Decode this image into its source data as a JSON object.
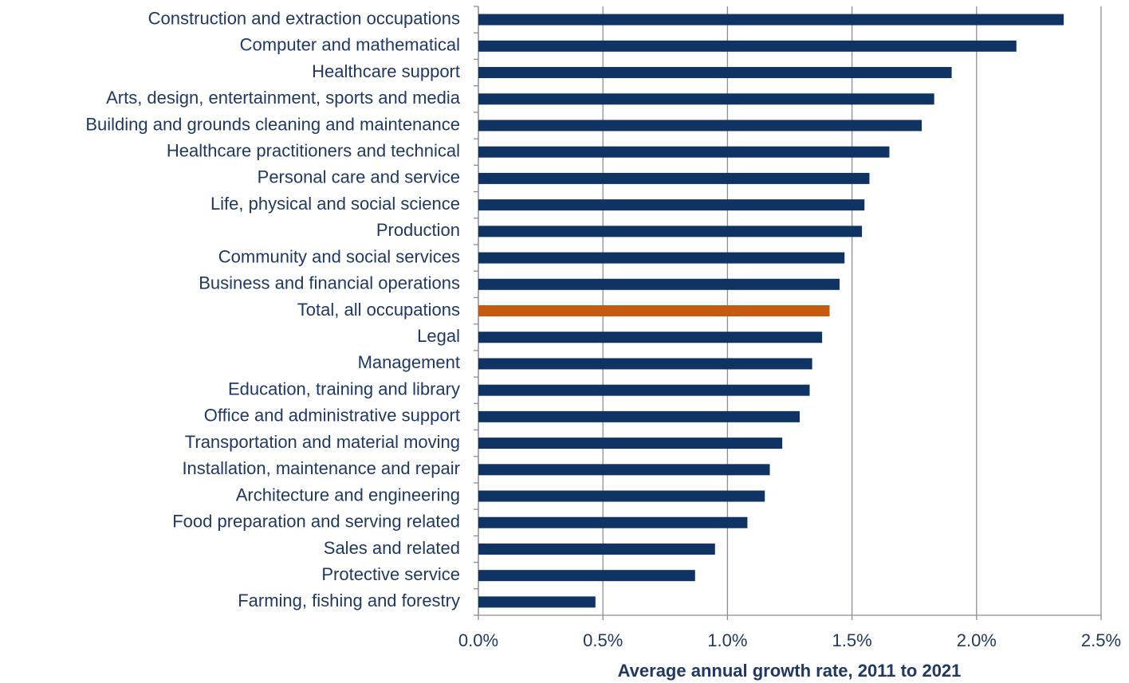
{
  "chart_data": {
    "type": "bar",
    "orientation": "horizontal",
    "x_label": "Average annual growth rate, 2011 to 2021",
    "categories": [
      "Construction and extraction occupations",
      "Computer and mathematical",
      "Healthcare support",
      "Arts, design, entertainment, sports and media",
      "Building and grounds cleaning and maintenance",
      "Healthcare practitioners and technical",
      "Personal care and service",
      "Life, physical and social science",
      "Production",
      "Community and social services",
      "Business and financial operations",
      "Total, all occupations",
      "Legal",
      "Management",
      "Education, training and library",
      "Office and administrative support",
      "Transportation and material moving",
      "Installation, maintenance and repair",
      "Architecture and engineering",
      "Food preparation and serving related",
      "Sales and related",
      "Protective service",
      "Farming, fishing and forestry"
    ],
    "values": [
      2.35,
      2.16,
      1.9,
      1.83,
      1.78,
      1.65,
      1.57,
      1.55,
      1.54,
      1.47,
      1.45,
      1.41,
      1.38,
      1.34,
      1.33,
      1.29,
      1.22,
      1.17,
      1.15,
      1.08,
      0.95,
      0.87,
      0.47
    ],
    "colors": [
      "#0f3463",
      "#0f3463",
      "#0f3463",
      "#0f3463",
      "#0f3463",
      "#0f3463",
      "#0f3463",
      "#0f3463",
      "#0f3463",
      "#0f3463",
      "#0f3463",
      "#c55a11",
      "#0f3463",
      "#0f3463",
      "#0f3463",
      "#0f3463",
      "#0f3463",
      "#0f3463",
      "#0f3463",
      "#0f3463",
      "#0f3463",
      "#0f3463",
      "#0f3463"
    ],
    "xlim": [
      0,
      2.5
    ],
    "xticks": [
      {
        "value": 0,
        "label": "0.0%"
      },
      {
        "value": 0.5,
        "label": "0.5%"
      },
      {
        "value": 1,
        "label": "1.0%"
      },
      {
        "value": 1.5,
        "label": "1.5%"
      },
      {
        "value": 2,
        "label": "2.0%"
      },
      {
        "value": 2.5,
        "label": "2.5%"
      }
    ],
    "grid": true
  }
}
